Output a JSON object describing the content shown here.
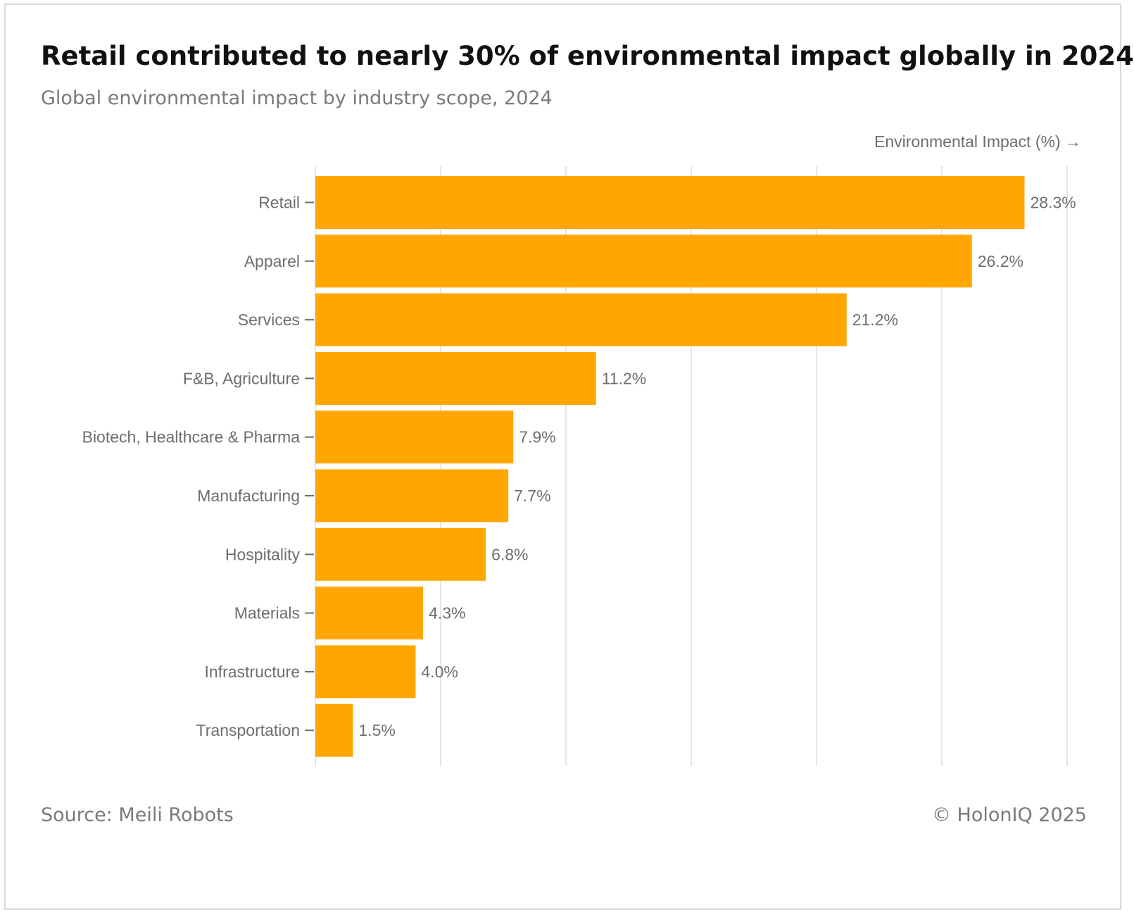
{
  "header": {
    "title": "Retail contributed to nearly 30% of environmental impact globally in 2024",
    "subtitle": "Global environmental impact by industry scope, 2024"
  },
  "footer": {
    "source": "Source: Meili Robots",
    "copyright": "© HolonIQ 2025"
  },
  "colors": {
    "bar": "#FFA600",
    "grid": "#e6e6e6",
    "axis_text": "#6e6e6e",
    "label_text": "#6e6e6e"
  },
  "chart_data": {
    "type": "bar",
    "orientation": "horizontal",
    "title": "Retail contributed to nearly 30% of environmental impact globally in 2024",
    "subtitle": "Global environmental impact by industry scope, 2024",
    "xlabel": "Environmental Impact (%) →",
    "ylabel": "",
    "xlim": [
      0,
      30
    ],
    "grid": true,
    "categories": [
      "Retail",
      "Apparel",
      "Services",
      "F&B, Agriculture",
      "Biotech, Healthcare & Pharma",
      "Manufacturing",
      "Hospitality",
      "Materials",
      "Infrastructure",
      "Transportation"
    ],
    "values": [
      28.3,
      26.2,
      21.2,
      11.2,
      7.9,
      7.7,
      6.8,
      4.3,
      4.0,
      1.5
    ],
    "value_labels": [
      "28.3%",
      "26.2%",
      "21.2%",
      "11.2%",
      "7.9%",
      "7.7%",
      "6.8%",
      "4.3%",
      "4.0%",
      "1.5%"
    ]
  }
}
